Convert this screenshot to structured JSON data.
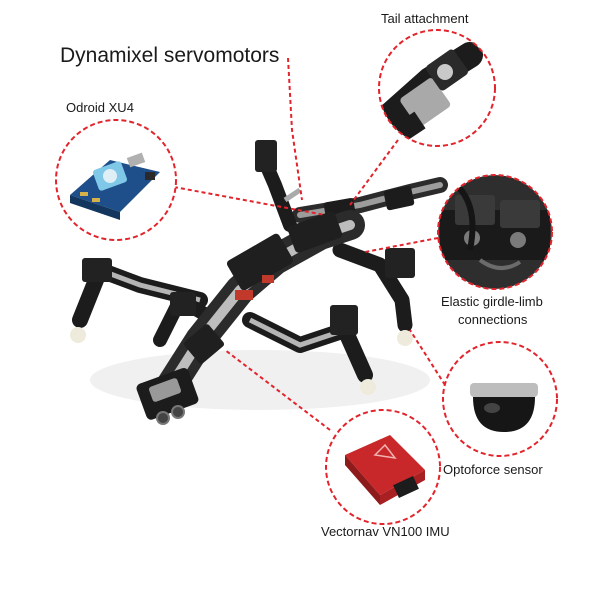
{
  "labels": {
    "dynamixel": "Dynamixel servomotors",
    "tail": "Tail attachment",
    "odroid": "Odroid XU4",
    "elastic_line1": "Elastic girdle-limb",
    "elastic_line2": "connections",
    "optoforce": "Optoforce sensor",
    "imu": "Vectornav VN100 IMU"
  },
  "colors": {
    "callout": "#e2242c",
    "robot_body": "#2b2b2b",
    "robot_frame": "#b9b9b9",
    "imu": "#c8282a",
    "foot": "#eeeadc"
  },
  "icons": {
    "odroid_board": "circuit-board-icon",
    "tail_joint": "servo-joint-icon",
    "elastic_joint": "elastic-connection-icon",
    "optoforce": "force-sensor-dome-icon",
    "imu": "imu-module-icon"
  }
}
